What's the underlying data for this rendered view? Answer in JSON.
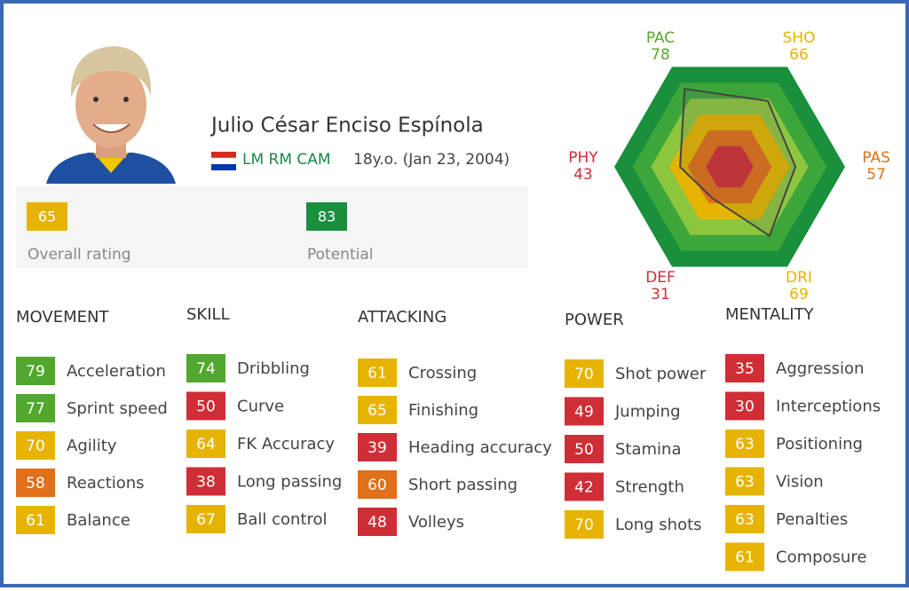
{
  "player": {
    "name": "Julio César Enciso Espínola",
    "positions": "LM RM CAM",
    "age": "18y.o. (Jan 23, 2004)"
  },
  "ratings": [
    {
      "value": 65,
      "label": "Overall rating"
    },
    {
      "value": 83,
      "label": "Potential"
    }
  ],
  "radar": [
    {
      "label": "PAC",
      "value": 78
    },
    {
      "label": "SHO",
      "value": 66
    },
    {
      "label": "PAS",
      "value": 57
    },
    {
      "label": "DRI",
      "value": 69
    },
    {
      "label": "DEF",
      "value": 31
    },
    {
      "label": "PHY",
      "value": 43
    }
  ],
  "groups": [
    {
      "title": "MOVEMENT",
      "attributes": [
        {
          "value": 79,
          "name": "Acceleration"
        },
        {
          "value": 77,
          "name": "Sprint speed"
        },
        {
          "value": 70,
          "name": "Agility"
        },
        {
          "value": 58,
          "name": "Reactions"
        },
        {
          "value": 61,
          "name": "Balance"
        }
      ]
    },
    {
      "title": "SKILL",
      "attributes": [
        {
          "value": 74,
          "name": "Dribbling"
        },
        {
          "value": 50,
          "name": "Curve"
        },
        {
          "value": 64,
          "name": "FK Accuracy"
        },
        {
          "value": 38,
          "name": "Long passing"
        },
        {
          "value": 67,
          "name": "Ball control"
        }
      ]
    },
    {
      "title": "ATTACKING",
      "attributes": [
        {
          "value": 61,
          "name": "Crossing"
        },
        {
          "value": 65,
          "name": "Finishing"
        },
        {
          "value": 39,
          "name": "Heading accuracy"
        },
        {
          "value": 60,
          "name": "Short passing"
        },
        {
          "value": 48,
          "name": "Volleys"
        }
      ]
    },
    {
      "title": "POWER",
      "attributes": [
        {
          "value": 70,
          "name": "Shot power"
        },
        {
          "value": 49,
          "name": "Jumping"
        },
        {
          "value": 50,
          "name": "Stamina"
        },
        {
          "value": 42,
          "name": "Strength"
        },
        {
          "value": 70,
          "name": "Long shots"
        }
      ]
    },
    {
      "title": "MENTALITY",
      "attributes": [
        {
          "value": 35,
          "name": "Aggression"
        },
        {
          "value": 30,
          "name": "Interceptions"
        },
        {
          "value": 63,
          "name": "Positioning"
        },
        {
          "value": 63,
          "name": "Vision"
        },
        {
          "value": 63,
          "name": "Penalties"
        },
        {
          "value": 61,
          "name": "Composure"
        }
      ]
    }
  ]
}
